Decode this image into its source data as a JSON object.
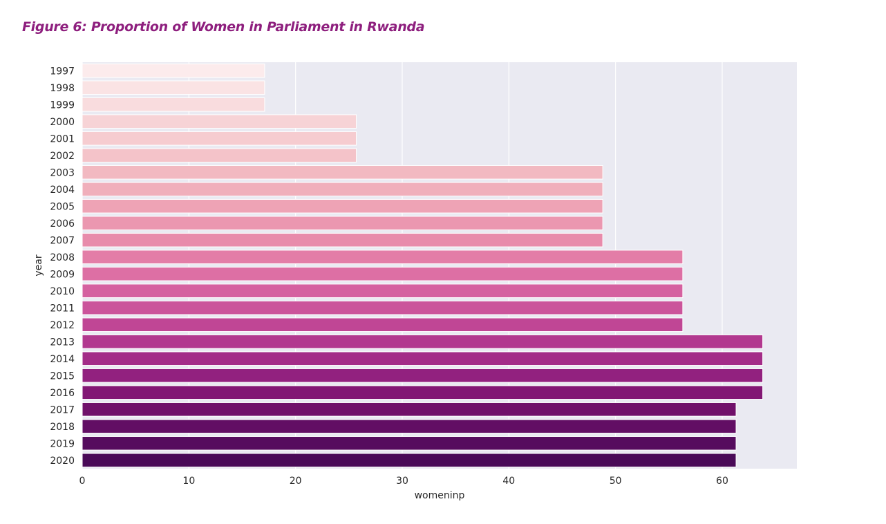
{
  "figure_title": "Figure 6: Proportion of Women in Parliament in Rwanda",
  "chart_data": {
    "type": "bar",
    "orientation": "horizontal",
    "categories": [
      "1997",
      "1998",
      "1999",
      "2000",
      "2001",
      "2002",
      "2003",
      "2004",
      "2005",
      "2006",
      "2007",
      "2008",
      "2009",
      "2010",
      "2011",
      "2012",
      "2013",
      "2014",
      "2015",
      "2016",
      "2017",
      "2018",
      "2019",
      "2020"
    ],
    "values": [
      17.1,
      17.1,
      17.1,
      25.7,
      25.7,
      25.7,
      48.8,
      48.8,
      48.8,
      48.8,
      48.8,
      56.3,
      56.3,
      56.3,
      56.3,
      56.3,
      63.8,
      63.8,
      63.8,
      63.8,
      61.3,
      61.3,
      61.3,
      61.3
    ],
    "colors": [
      "#fcebec",
      "#fae3e4",
      "#f9dcde",
      "#f7d3d6",
      "#f6ccd0",
      "#f4c3c9",
      "#f2b9c1",
      "#f0afbb",
      "#eea3b5",
      "#eb97b0",
      "#e88bab",
      "#e37da7",
      "#dd6fa4",
      "#d561a0",
      "#cb549b",
      "#c04695",
      "#b2388f",
      "#a32c88",
      "#92217f",
      "#821774",
      "#70106a",
      "#620e64",
      "#560c5e",
      "#4a0a58"
    ],
    "xlabel": "womeninp",
    "ylabel": "year",
    "xlim": [
      0,
      67
    ],
    "xticks": [
      0,
      10,
      20,
      30,
      40,
      50,
      60
    ],
    "grid": true,
    "background": "#eaeaf2"
  }
}
